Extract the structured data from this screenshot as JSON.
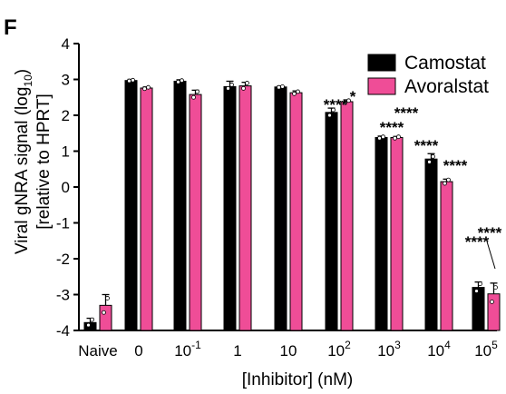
{
  "panel_label": "F",
  "chart_data": {
    "type": "bar",
    "xlabel": "[Inhibitor] (nM)",
    "ylabel_line1": "Viral gNRA signal (log",
    "ylabel_sub": "10",
    "ylabel_close": ")",
    "ylabel_line2": "[relative to HPRT]",
    "ylim": [
      -4,
      4
    ],
    "yticks": [
      -4,
      -3,
      -2,
      -1,
      0,
      1,
      2,
      3,
      4
    ],
    "categories": [
      {
        "base": "Naive",
        "exp": ""
      },
      {
        "base": "0",
        "exp": ""
      },
      {
        "base": "10",
        "exp": "-1"
      },
      {
        "base": "1",
        "exp": ""
      },
      {
        "base": "10",
        "exp": ""
      },
      {
        "base": "10",
        "exp": "2"
      },
      {
        "base": "10",
        "exp": "3"
      },
      {
        "base": "10",
        "exp": "4"
      },
      {
        "base": "10",
        "exp": "5"
      }
    ],
    "legend_position": "top-right",
    "series": [
      {
        "name": "Camostat",
        "color": "#000000",
        "values": [
          -3.78,
          2.97,
          2.95,
          2.8,
          2.79,
          2.08,
          1.38,
          0.78,
          -2.8
        ],
        "errors": [
          0.12,
          0.03,
          0.04,
          0.15,
          0.03,
          0.12,
          0.04,
          0.15,
          0.15
        ],
        "points": [
          [
            -3.85,
            -3.7
          ],
          [
            2.96,
            2.98
          ],
          [
            2.93,
            2.97
          ],
          [
            2.75,
            2.85
          ],
          [
            2.78,
            2.8
          ],
          [
            2.0,
            2.15
          ],
          [
            1.36,
            1.4
          ],
          [
            0.7,
            0.85
          ],
          [
            -2.9,
            -2.7
          ]
        ],
        "significance": [
          "",
          "",
          "",
          "",
          "",
          "****",
          "****",
          "****",
          "****"
        ]
      },
      {
        "name": "Avoralstat",
        "color": "#ef4d97",
        "values": [
          -3.3,
          2.76,
          2.58,
          2.82,
          2.63,
          2.38,
          1.38,
          0.15,
          -2.98
        ],
        "errors": [
          0.3,
          0.03,
          0.12,
          0.1,
          0.05,
          0.05,
          0.03,
          0.07,
          0.3
        ],
        "points": [
          [
            -3.5,
            -3.1
          ],
          [
            2.74,
            2.78
          ],
          [
            2.5,
            2.66
          ],
          [
            2.75,
            2.9
          ],
          [
            2.6,
            2.66
          ],
          [
            2.35,
            2.41
          ],
          [
            1.36,
            1.4
          ],
          [
            0.1,
            0.2
          ],
          [
            -3.2,
            -2.8
          ]
        ],
        "significance": [
          "",
          "",
          "",
          "",
          "",
          "*",
          "****",
          "****",
          "****"
        ]
      }
    ]
  }
}
